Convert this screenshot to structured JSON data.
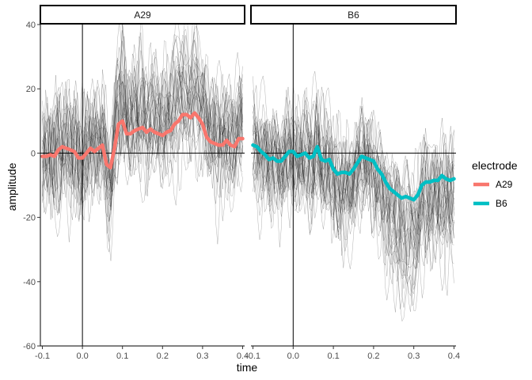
{
  "chart_data": {
    "type": "line",
    "xlabel": "time",
    "ylabel": "amplitude",
    "x_ticks": [
      -0.1,
      0.0,
      0.1,
      0.2,
      0.3,
      0.4
    ],
    "x_tick_labels": [
      "-0.1",
      "0.0",
      "0.1",
      "0.2",
      "0.3",
      "0.4"
    ],
    "y_ticks": [
      -60,
      -40,
      -20,
      0,
      20,
      40
    ],
    "y_tick_labels": [
      "-60",
      "-40",
      "-20",
      "0",
      "20",
      "40"
    ],
    "xlim": [
      -0.11,
      0.41
    ],
    "ylim": [
      -60,
      40
    ],
    "reference_lines": {
      "x": 0,
      "y": 0
    },
    "grid": false,
    "legend": {
      "title": "electrode",
      "position": "right",
      "entries": [
        {
          "label": "A29",
          "color": "#F8766D"
        },
        {
          "label": "B6",
          "color": "#00BFC4"
        }
      ]
    },
    "panels": [
      {
        "strip": "A29",
        "color": "#F8766D",
        "mean": {
          "x": [
            -0.1,
            -0.09,
            -0.08,
            -0.07,
            -0.06,
            -0.05,
            -0.04,
            -0.03,
            -0.02,
            -0.01,
            0.0,
            0.01,
            0.02,
            0.03,
            0.04,
            0.05,
            0.06,
            0.07,
            0.08,
            0.09,
            0.1,
            0.11,
            0.12,
            0.13,
            0.14,
            0.15,
            0.16,
            0.17,
            0.18,
            0.19,
            0.2,
            0.21,
            0.22,
            0.23,
            0.24,
            0.25,
            0.26,
            0.27,
            0.28,
            0.29,
            0.3,
            0.31,
            0.32,
            0.33,
            0.34,
            0.35,
            0.36,
            0.37,
            0.38,
            0.39,
            0.4
          ],
          "y": [
            -1,
            -1,
            -0.5,
            -1,
            1,
            2,
            1.5,
            1,
            0.5,
            -1.5,
            -1.5,
            0,
            1.5,
            0.5,
            1.5,
            2.5,
            -3.5,
            -4.5,
            1.5,
            9,
            10,
            6,
            6,
            7,
            7.5,
            8,
            6.5,
            7.5,
            6.5,
            6,
            5.5,
            6.5,
            7,
            9,
            10,
            12,
            12,
            11,
            12.5,
            11,
            9,
            5,
            3.5,
            3,
            2.5,
            2.5,
            4,
            2.5,
            2,
            4.5,
            4.5
          ]
        }
      },
      {
        "strip": "B6",
        "color": "#00BFC4",
        "mean": {
          "x": [
            -0.1,
            -0.09,
            -0.08,
            -0.07,
            -0.06,
            -0.05,
            -0.04,
            -0.03,
            -0.02,
            -0.01,
            0.0,
            0.01,
            0.02,
            0.03,
            0.04,
            0.05,
            0.06,
            0.07,
            0.08,
            0.09,
            0.1,
            0.11,
            0.12,
            0.13,
            0.14,
            0.15,
            0.16,
            0.17,
            0.18,
            0.19,
            0.2,
            0.21,
            0.22,
            0.23,
            0.24,
            0.25,
            0.26,
            0.27,
            0.28,
            0.29,
            0.3,
            0.31,
            0.32,
            0.33,
            0.34,
            0.35,
            0.36,
            0.37,
            0.38,
            0.39,
            0.4
          ],
          "y": [
            2.5,
            2,
            0.5,
            -0.5,
            -2,
            -1.5,
            -2.5,
            -2.5,
            -1,
            0.5,
            0.5,
            -1,
            -0.5,
            0,
            -1.5,
            -1,
            2,
            -2,
            -2.5,
            -2,
            -5,
            -6.5,
            -6,
            -6,
            -6.5,
            -5,
            -3,
            -1,
            -1.5,
            -2,
            -2.5,
            -5,
            -6.5,
            -9,
            -11,
            -12,
            -13,
            -14,
            -13.5,
            -14,
            -14.5,
            -13,
            -10,
            -9,
            -9,
            -8.5,
            -8.5,
            -7,
            -8,
            -8.5,
            -8
          ]
        }
      }
    ]
  }
}
